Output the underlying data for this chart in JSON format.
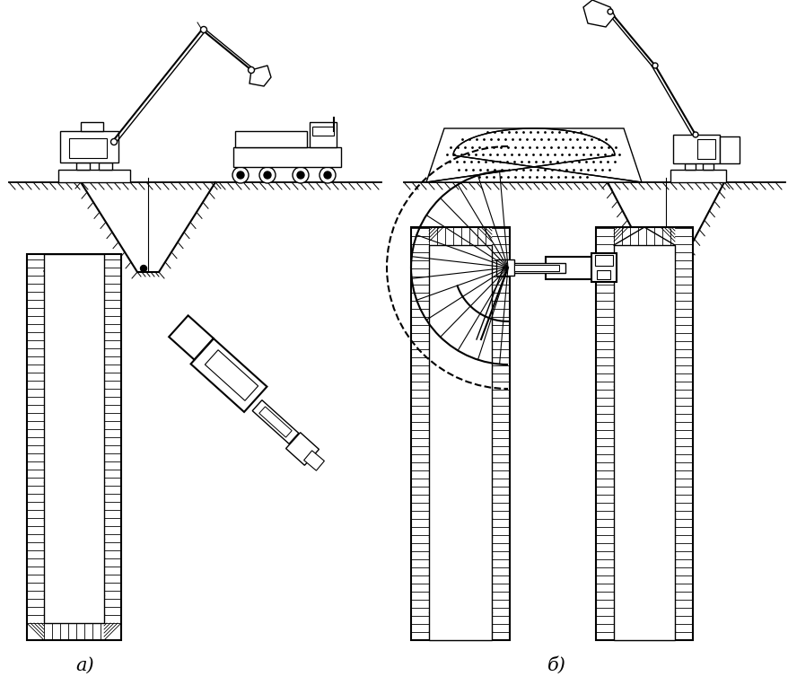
{
  "bg_color": "#ffffff",
  "lc": "#000000",
  "fig_w": 8.79,
  "fig_h": 7.73,
  "dpi": 100,
  "label_a": "а)",
  "label_b": "б)"
}
